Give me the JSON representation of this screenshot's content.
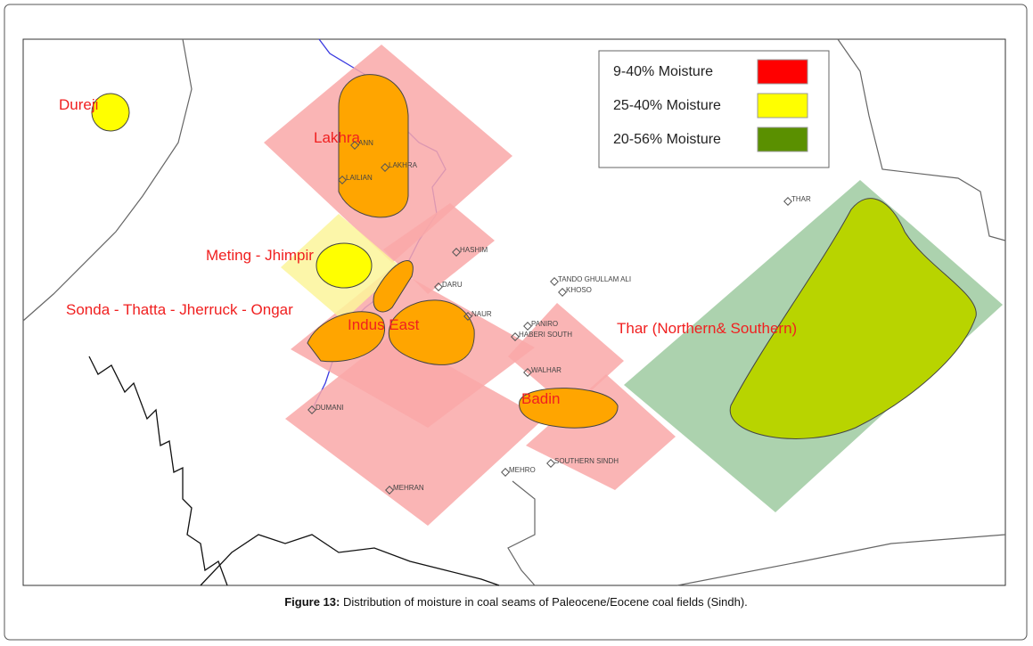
{
  "legend": [
    {
      "label": "9-40% Moisture",
      "color": "#ff0000"
    },
    {
      "label": "25-40% Moisture",
      "color": "#ffff00"
    },
    {
      "label": "20-56% Moisture",
      "color": "#5a9000"
    }
  ],
  "fields": [
    "Dureji",
    "Lakhra",
    "Meting - Jhimpir",
    "Sonda - Thatta - Jherruck - Ongar",
    "Indus East",
    "Badin",
    "Thar (Northern& Southern)"
  ],
  "places": [
    "ANN",
    "LAILIAN",
    "LAKHRA",
    "HASHIM",
    "DARU",
    "NAUR",
    "TANDO GHULLAM ALI",
    "KHOSO",
    "PANIRO",
    "HABERI SOUTH",
    "WALHAR",
    "THAR",
    "DUMANI",
    "MEHRAN",
    "MEHRO",
    "SOUTHERN SINDH"
  ],
  "caption": {
    "label": "Figure 13:",
    "text": "Distribution of moisture in coal seams of Paleocene/Eocene coal fields (Sindh)."
  }
}
